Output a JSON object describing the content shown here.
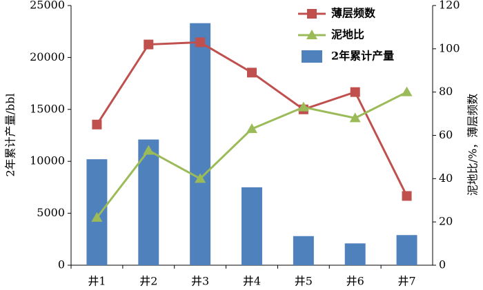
{
  "chart_data": {
    "type": "bar_line",
    "y_label": "2年累计产量/bbl",
    "y2_label": "泥地比/%，薄层频数",
    "categories": [
      "井1",
      "井2",
      "井3",
      "井4",
      "井5",
      "井6",
      "井7"
    ],
    "series": [
      {
        "name": "薄层频数",
        "type": "line",
        "axis": "y2",
        "color": "#c0504d",
        "marker": "square",
        "values": [
          65,
          102,
          103,
          89,
          72,
          80,
          32
        ]
      },
      {
        "name": "泥地比",
        "type": "line",
        "axis": "y2",
        "color": "#9bbb59",
        "marker": "triangle",
        "values": [
          22,
          53,
          40,
          63,
          73,
          68,
          80
        ]
      },
      {
        "name": "2年累计产量",
        "type": "bar",
        "color": "#4f81bd",
        "values": [
          10200,
          12100,
          23300,
          7500,
          2800,
          2100,
          2900
        ]
      }
    ],
    "ylim": [
      0,
      25000
    ],
    "yticks": [
      0,
      5000,
      10000,
      15000,
      20000,
      25000
    ],
    "y2lim": [
      0,
      120
    ],
    "y2ticks": [
      0,
      20,
      40,
      60,
      80,
      100,
      120
    ]
  }
}
